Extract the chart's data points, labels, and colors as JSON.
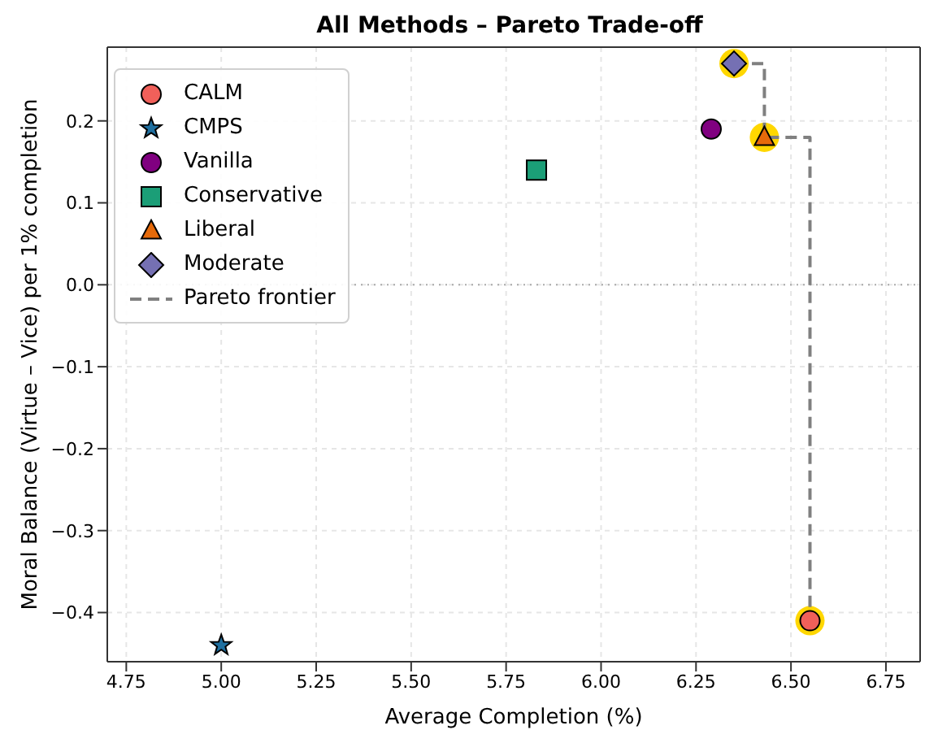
{
  "chart_data": {
    "type": "scatter",
    "title": "All Methods – Pareto Trade-off",
    "xlabel": "Average Completion (%)",
    "ylabel": "Moral Balance (Virtue – Vice) per 1% completion",
    "xlim": [
      4.7,
      6.84
    ],
    "ylim": [
      -0.46,
      0.29
    ],
    "xticks": [
      {
        "value": 4.75,
        "label": "4.75"
      },
      {
        "value": 5,
        "label": "5.00"
      },
      {
        "value": 5.25,
        "label": "5.25"
      },
      {
        "value": 5.5,
        "label": "5.50"
      },
      {
        "value": 5.75,
        "label": "5.75"
      },
      {
        "value": 6,
        "label": "6.00"
      },
      {
        "value": 6.25,
        "label": "6.25"
      },
      {
        "value": 6.5,
        "label": "6.50"
      },
      {
        "value": 6.75,
        "label": "6.75"
      }
    ],
    "yticks": [
      {
        "value": -0.4,
        "label": "−0.4"
      },
      {
        "value": -0.3,
        "label": "−0.3"
      },
      {
        "value": -0.2,
        "label": "−0.2"
      },
      {
        "value": -0.1,
        "label": "−0.1"
      },
      {
        "value": 0,
        "label": "0.0"
      },
      {
        "value": 0.1,
        "label": "0.1"
      },
      {
        "value": 0.2,
        "label": "0.2"
      }
    ],
    "grid": true,
    "legend": "top left",
    "ref_lines": [
      {
        "axis": "y",
        "value": 0,
        "color": "#aaaaaa",
        "line_style": "dotted"
      }
    ],
    "series": [
      {
        "type": "scatter",
        "color": "#ffd700",
        "marker": "circle",
        "x": [
          6.35,
          6.43,
          6.55
        ],
        "values": [
          0.27,
          0.18,
          -0.41
        ]
      },
      {
        "type": "line",
        "name": "Pareto frontier",
        "color": "#808080",
        "line_style": "dashed",
        "marker": "none",
        "x": [
          6.35,
          6.43,
          6.43,
          6.55,
          6.55
        ],
        "values": [
          0.27,
          0.27,
          0.18,
          0.18,
          -0.41
        ]
      },
      {
        "name": "CALM",
        "color": "#f0605a",
        "marker": "circle",
        "x": [
          6.55
        ],
        "values": [
          -0.41
        ]
      },
      {
        "name": "CMPS",
        "color": "#1f6f9f",
        "marker": "star",
        "x": [
          5.0
        ],
        "values": [
          -0.44
        ]
      },
      {
        "name": "Vanilla",
        "color": "#800080",
        "marker": "circle",
        "x": [
          6.29
        ],
        "values": [
          0.19
        ]
      },
      {
        "name": "Conservative",
        "color": "#1b9e77",
        "marker": "square",
        "x": [
          5.83
        ],
        "values": [
          0.14
        ]
      },
      {
        "name": "Liberal",
        "color": "#e66a0a",
        "marker": "triangle",
        "x": [
          6.43
        ],
        "values": [
          0.18
        ]
      },
      {
        "name": "Moderate",
        "color": "#7570b3",
        "marker": "diamond",
        "x": [
          6.35
        ],
        "values": [
          0.27
        ]
      }
    ]
  }
}
